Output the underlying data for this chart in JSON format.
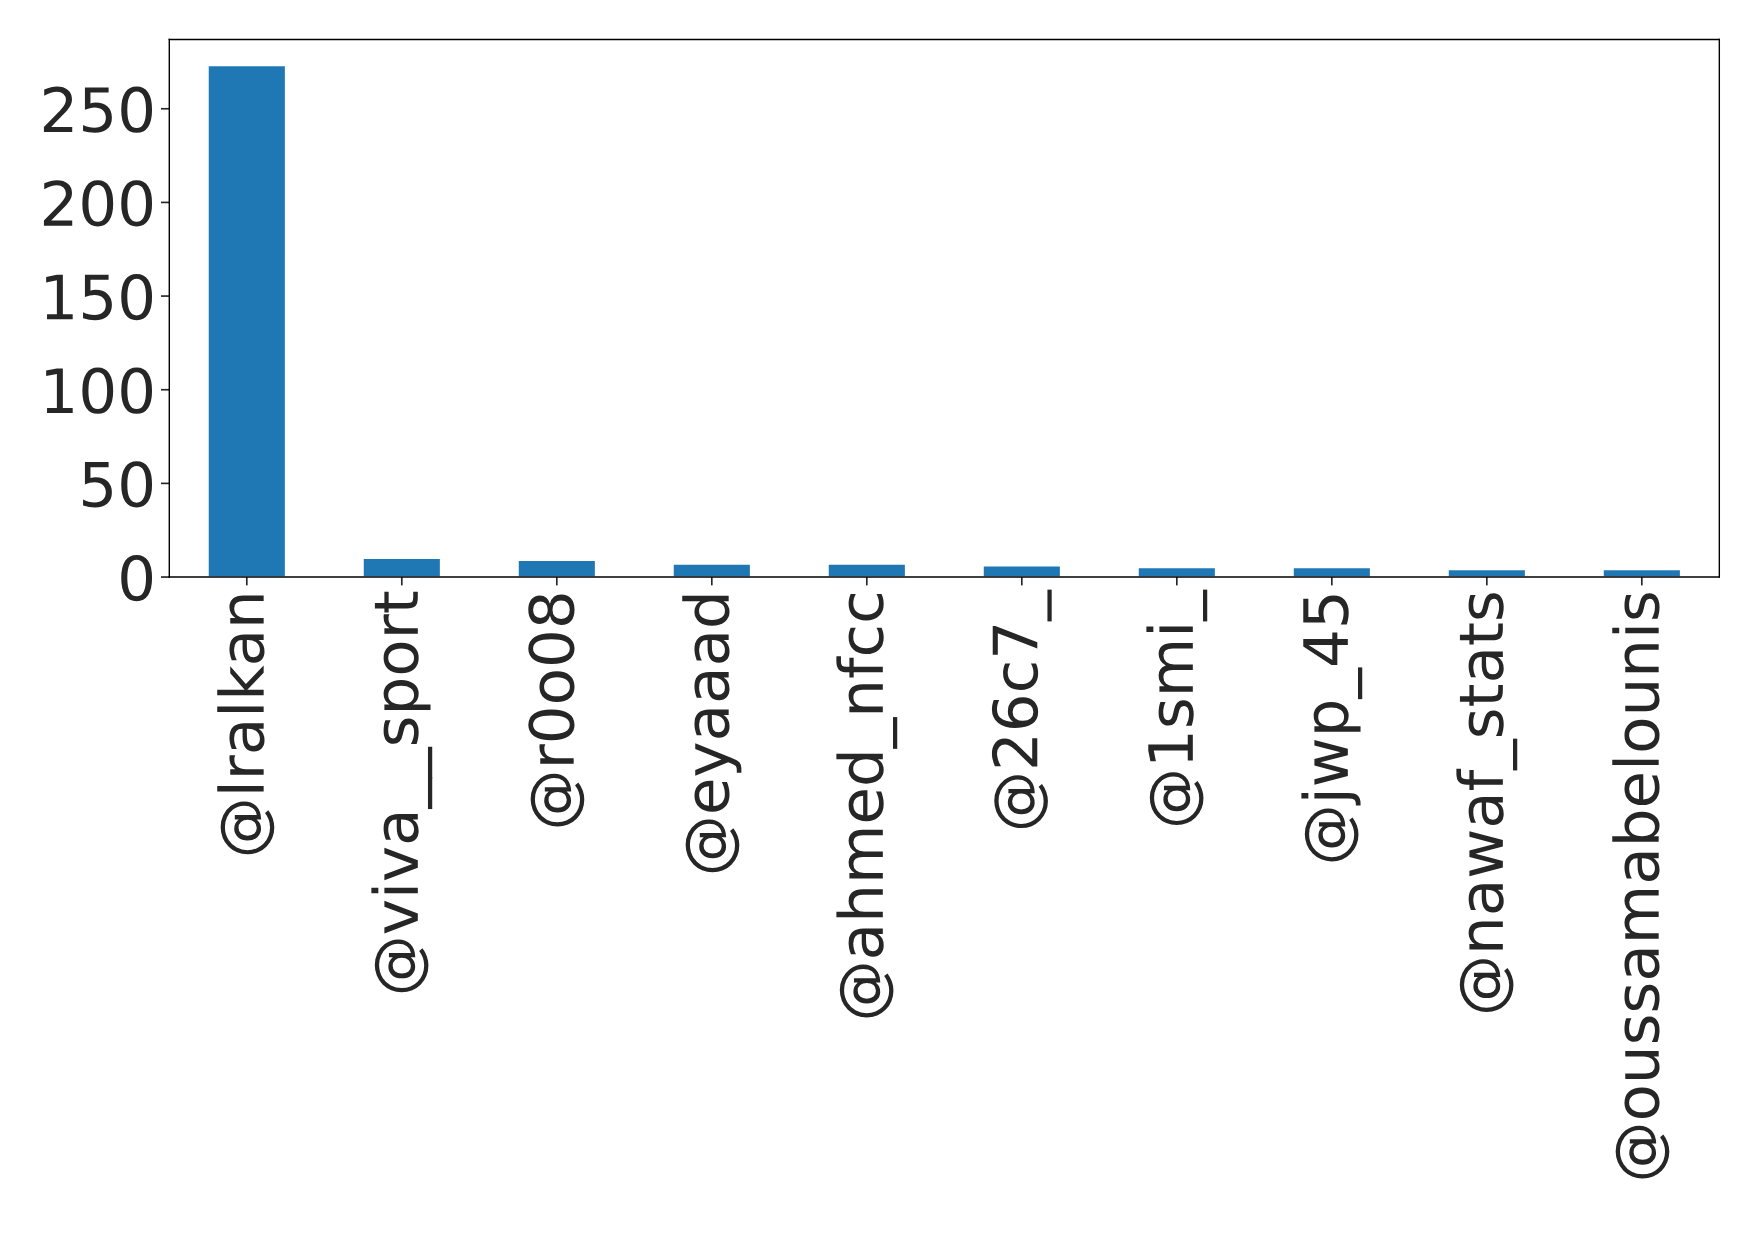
{
  "chart_data": {
    "type": "bar",
    "categories": [
      "@lralkan",
      "@viva__sport",
      "@r0o08",
      "@eyaaad",
      "@ahmed_nfcc",
      "@26c7_",
      "@1smi_",
      "@jwp_45",
      "@nawaf_stats",
      "@oussamabelounis"
    ],
    "values": [
      273,
      10,
      9,
      7,
      7,
      6,
      5,
      5,
      4,
      4
    ],
    "color": "#1f77b4",
    "ylim": [
      0,
      287
    ],
    "yticks": [
      0,
      50,
      100,
      150,
      200,
      250
    ],
    "grid": false,
    "legend": false
  }
}
